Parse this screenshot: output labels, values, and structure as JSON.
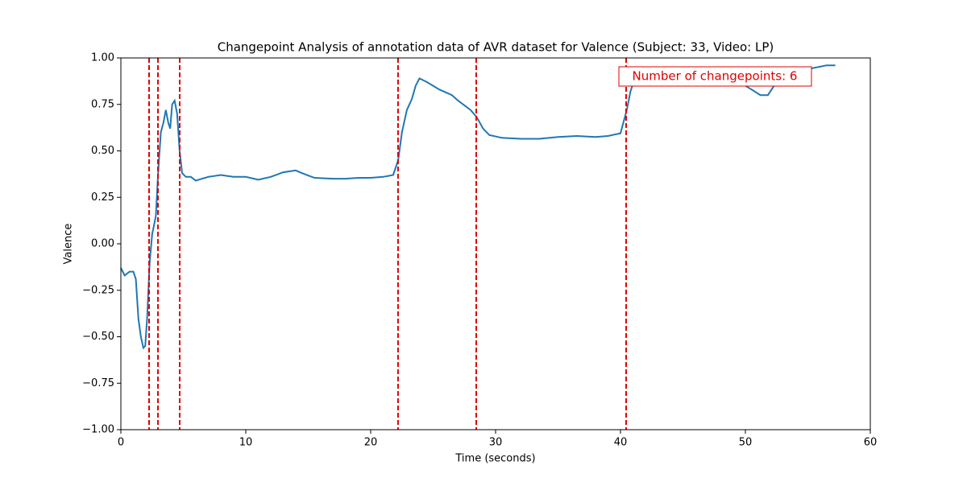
{
  "chart_data": {
    "type": "line",
    "title": "Changepoint Analysis of annotation data of AVR dataset for Valence (Subject: 33, Video: LP)",
    "x_label": "Time (seconds)",
    "y_label": "Valence",
    "xlim": [
      0,
      60
    ],
    "ylim": [
      -1,
      1
    ],
    "xticks": [
      0,
      10,
      20,
      30,
      40,
      50,
      60
    ],
    "yticks": [
      {
        "value": -1,
        "label": "−1.00"
      },
      {
        "value": -0.75,
        "label": "−0.75"
      },
      {
        "value": -0.5,
        "label": "−0.50"
      },
      {
        "value": -0.25,
        "label": "−0.25"
      },
      {
        "value": 0,
        "label": "0.00"
      },
      {
        "value": 0.25,
        "label": "0.25"
      },
      {
        "value": 0.5,
        "label": "0.50"
      },
      {
        "value": 0.75,
        "label": "0.75"
      },
      {
        "value": 1,
        "label": "1.00"
      }
    ],
    "series": [
      {
        "color": "#1f77b4",
        "x": [
          0,
          0.3,
          0.7,
          1.0,
          1.2,
          1.4,
          1.6,
          1.8,
          1.95,
          2.1,
          2.3,
          2.5,
          2.8,
          3.0,
          3.2,
          3.4,
          3.6,
          3.8,
          3.95,
          4.1,
          4.3,
          4.5,
          4.7,
          4.9,
          5.2,
          5.6,
          6.0,
          6.5,
          7,
          8,
          9,
          10,
          11,
          12,
          13,
          14,
          14.5,
          15.5,
          17,
          18,
          19,
          20,
          21,
          21.8,
          22.2,
          22.5,
          22.9,
          23.3,
          23.6,
          23.9,
          24.5,
          25.5,
          26.5,
          27,
          28,
          28.5,
          29,
          29.5,
          30.5,
          32,
          33.5,
          35,
          36.5,
          38,
          39,
          40,
          40.5,
          40.8,
          41.2,
          42,
          43,
          45,
          46,
          48,
          49.5,
          50.5,
          51.2,
          51.8,
          52.3,
          52.7,
          53.5,
          55,
          56.5,
          57.2
        ],
        "values": [
          -0.13,
          -0.17,
          -0.15,
          -0.15,
          -0.19,
          -0.4,
          -0.5,
          -0.56,
          -0.55,
          -0.4,
          -0.1,
          0.05,
          0.15,
          0.4,
          0.6,
          0.65,
          0.72,
          0.65,
          0.62,
          0.75,
          0.77,
          0.7,
          0.5,
          0.38,
          0.36,
          0.36,
          0.34,
          0.35,
          0.36,
          0.37,
          0.36,
          0.36,
          0.345,
          0.36,
          0.385,
          0.395,
          0.38,
          0.355,
          0.35,
          0.35,
          0.355,
          0.355,
          0.36,
          0.37,
          0.45,
          0.6,
          0.72,
          0.78,
          0.85,
          0.89,
          0.87,
          0.83,
          0.8,
          0.77,
          0.72,
          0.68,
          0.62,
          0.585,
          0.57,
          0.565,
          0.565,
          0.575,
          0.58,
          0.575,
          0.58,
          0.595,
          0.72,
          0.82,
          0.9,
          0.93,
          0.91,
          0.87,
          0.86,
          0.86,
          0.87,
          0.83,
          0.8,
          0.8,
          0.85,
          0.9,
          0.93,
          0.94,
          0.96,
          0.96
        ]
      }
    ],
    "changepoints": [
      2.26,
      2.97,
      4.71,
      22.19,
      28.45,
      40.45
    ],
    "changepoint_color": "#e00000",
    "annotation": "Number of changepoints: 6"
  }
}
